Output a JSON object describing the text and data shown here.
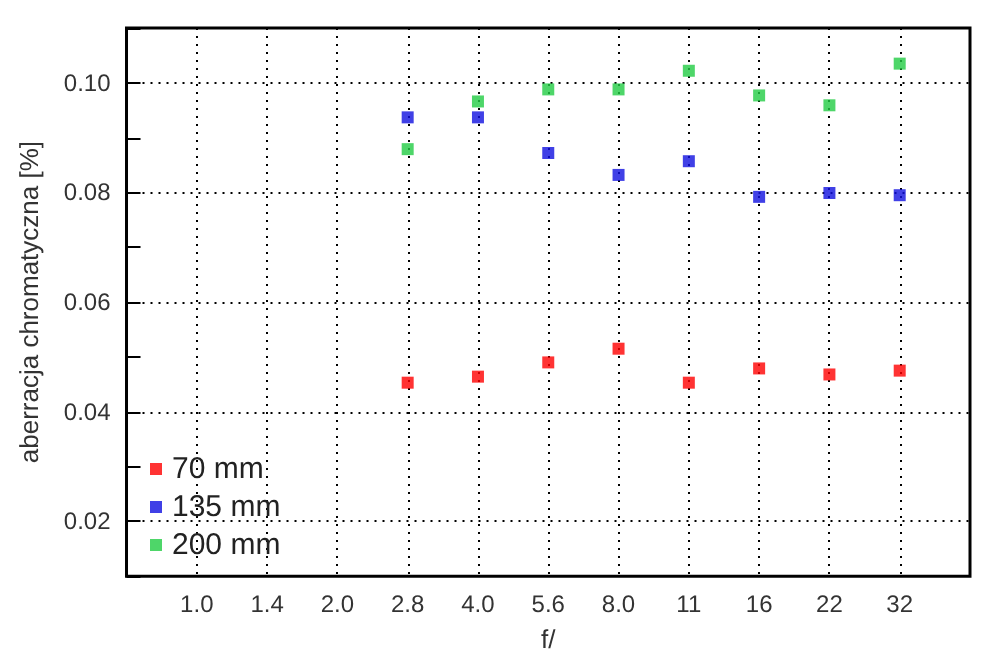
{
  "chart_data": {
    "type": "scatter",
    "xlabel": "f/",
    "ylabel": "aberracja chromatyczna [%]",
    "categories": [
      "1.0",
      "1.4",
      "2.0",
      "2.8",
      "4.0",
      "5.6",
      "8.0",
      "11",
      "16",
      "22",
      "32"
    ],
    "series": [
      {
        "name": "70 mm",
        "color": "#ff0000",
        "values": [
          null,
          null,
          null,
          0.0453,
          0.0464,
          0.049,
          0.0515,
          0.0453,
          0.0479,
          0.0468,
          0.0475
        ]
      },
      {
        "name": "135 mm",
        "color": "#1010e0",
        "values": [
          null,
          null,
          null,
          0.0937,
          0.0937,
          0.0872,
          0.0832,
          0.0857,
          0.0792,
          0.0799,
          0.0795
        ]
      },
      {
        "name": "200 mm",
        "color": "#22cc44",
        "values": [
          null,
          null,
          null,
          0.0879,
          0.0966,
          0.0988,
          0.0988,
          0.1022,
          0.0977,
          0.0959,
          0.1035
        ]
      }
    ],
    "ylim": [
      0.01,
      0.11
    ],
    "yticks": [
      {
        "value": 0.01,
        "label": null
      },
      0.02,
      {
        "value": 0.03,
        "label": null
      },
      0.04,
      {
        "value": 0.05,
        "label": null
      },
      0.06,
      {
        "value": 0.07,
        "label": null
      },
      0.08,
      {
        "value": 0.09,
        "label": null
      },
      {
        "value": 0.1,
        "label": "0.10"
      },
      {
        "value": 0.11,
        "label": null
      }
    ],
    "grid": true,
    "legend": "bottom left",
    "marker": "square"
  }
}
